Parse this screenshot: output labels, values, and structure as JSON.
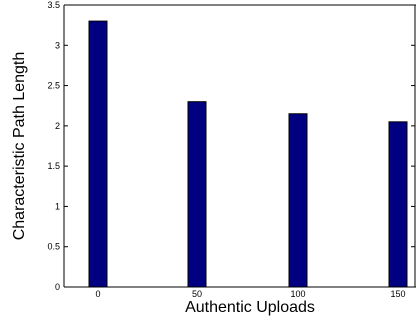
{
  "chart_data": {
    "type": "bar",
    "categories": [
      "0",
      "50",
      "100",
      "150"
    ],
    "values": [
      3.3,
      2.3,
      2.15,
      2.05
    ],
    "xlabel": "Authentic Uploads",
    "ylabel": "Characteristic Path Length",
    "ylim": [
      0,
      3.5
    ],
    "yticks": [
      "0",
      "0.5",
      "1",
      "1.5",
      "2",
      "2.5",
      "3",
      "3.5"
    ],
    "grid": false,
    "bar_color": "#000080",
    "bar_edge_color": "#000000"
  }
}
